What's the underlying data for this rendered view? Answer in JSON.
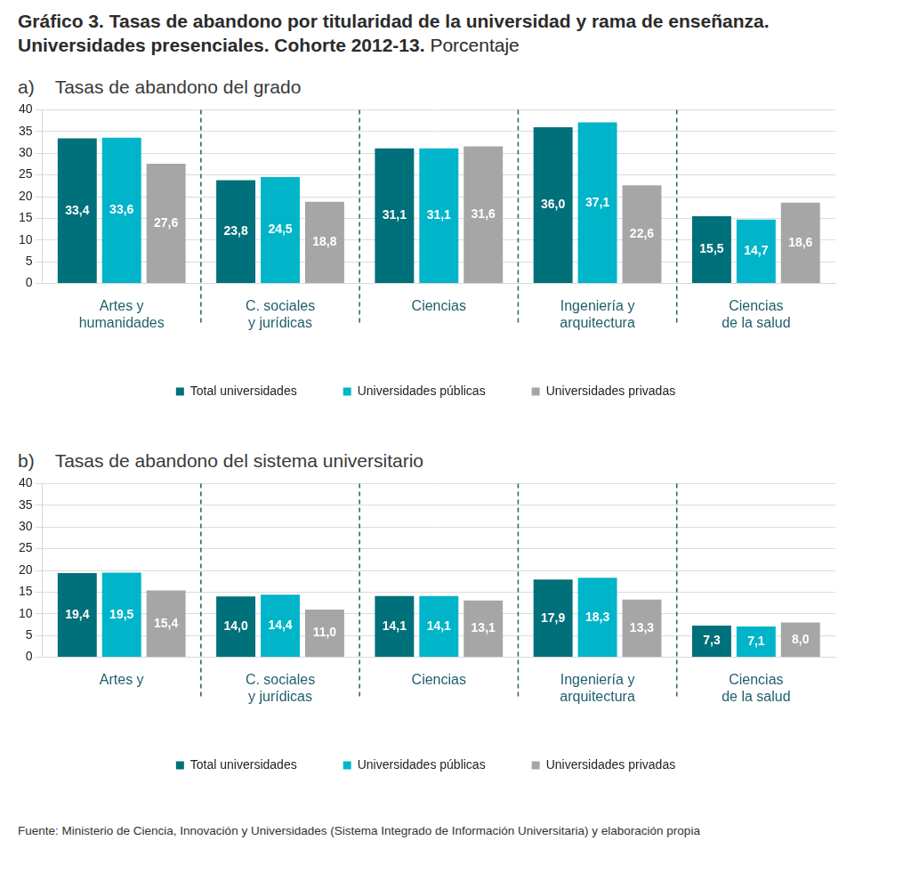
{
  "title": "Gráfico 3. Tasas de abandono por titularidad de la universidad y rama de enseñanza. Universidades presenciales. Cohorte 2012-13.",
  "subtitle": "Porcentaje",
  "source": "Fuente: Ministerio de Ciencia, Innovación y Universidades (Sistema Integrado de Información Universitaria) y elaboración propia",
  "chart_data": [
    {
      "type": "bar",
      "title": "a)    Tasas de abandono del grado",
      "categories": [
        [
          "Artes y",
          "humanidades"
        ],
        [
          "C. sociales",
          "y jurídicas"
        ],
        [
          "Ciencias"
        ],
        [
          "Ingeniería y",
          "arquitectura"
        ],
        [
          "Ciencias",
          "de la salud"
        ]
      ],
      "series": [
        {
          "name": "Total universidades",
          "color": "#00707a",
          "values": [
            33.4,
            23.8,
            31.1,
            36.0,
            15.5
          ],
          "value_labels": [
            "33,4",
            "23,8",
            "31,1",
            "36,0",
            "15,5"
          ]
        },
        {
          "name": "Universidades públicas",
          "color": "#00b5c9",
          "values": [
            33.6,
            24.5,
            31.1,
            37.1,
            14.7
          ],
          "value_labels": [
            "33,6",
            "24,5",
            "31,1",
            "37,1",
            "14,7"
          ]
        },
        {
          "name": "Universidades privadas",
          "color": "#a6a6a6",
          "values": [
            27.6,
            18.8,
            31.6,
            22.6,
            18.6
          ],
          "value_labels": [
            "27,6",
            "18,8",
            "31,6",
            "22,6",
            "18,6"
          ]
        }
      ],
      "ylim": [
        0,
        40
      ],
      "yticks": [
        0,
        5,
        10,
        15,
        20,
        25,
        30,
        35,
        40
      ],
      "grid": true,
      "legend": "bottom",
      "data_labels": true
    },
    {
      "type": "bar",
      "title": "b)    Tasas de abandono del sistema universitario",
      "categories": [
        [
          "Artes y"
        ],
        [
          "C. sociales",
          "y jurídicas"
        ],
        [
          "Ciencias"
        ],
        [
          "Ingeniería y",
          "arquitectura"
        ],
        [
          "Ciencias",
          "de la salud"
        ]
      ],
      "series": [
        {
          "name": "Total universidades",
          "color": "#00707a",
          "values": [
            19.4,
            14.0,
            14.1,
            17.9,
            7.3
          ],
          "value_labels": [
            "19,4",
            "14,0",
            "14,1",
            "17,9",
            "7,3"
          ]
        },
        {
          "name": "Universidades públicas",
          "color": "#00b5c9",
          "values": [
            19.5,
            14.4,
            14.1,
            18.3,
            7.1
          ],
          "value_labels": [
            "19,5",
            "14,4",
            "14,1",
            "18,3",
            "7,1"
          ]
        },
        {
          "name": "Universidades privadas",
          "color": "#a6a6a6",
          "values": [
            15.4,
            11.0,
            13.1,
            13.3,
            8.0
          ],
          "value_labels": [
            "15,4",
            "11,0",
            "13,1",
            "13,3",
            "8,0"
          ]
        }
      ],
      "ylim": [
        0,
        40
      ],
      "yticks": [
        0,
        5,
        10,
        15,
        20,
        25,
        30,
        35,
        40
      ],
      "grid": true,
      "legend": "bottom",
      "data_labels": true
    }
  ]
}
